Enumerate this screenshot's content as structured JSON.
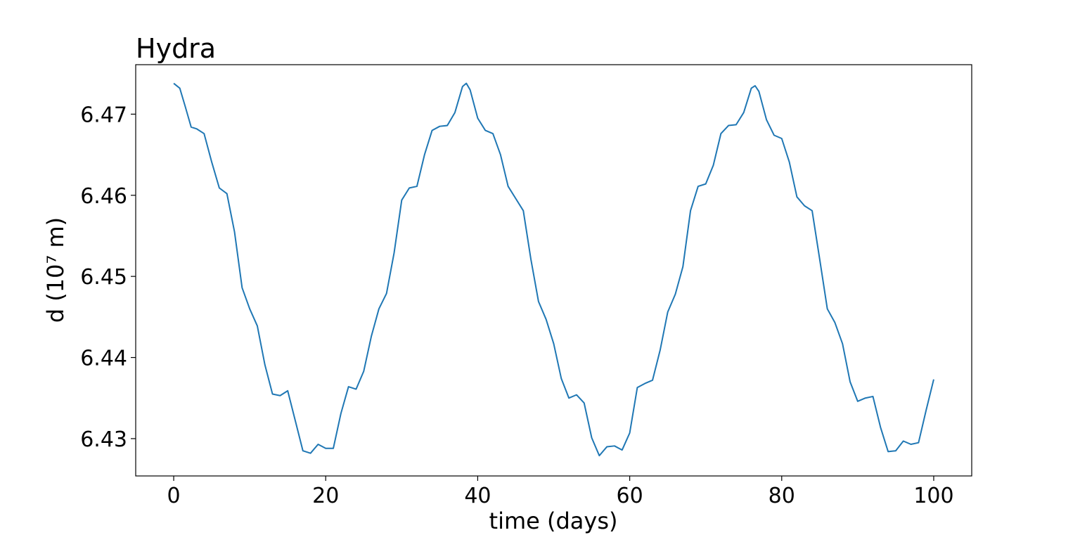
{
  "chart_data": {
    "type": "line",
    "title": "Hydra",
    "xlabel": "time (days)",
    "ylabel": "d (10⁷ m)",
    "x": [
      0,
      0.8,
      1.5,
      2.3,
      3,
      4,
      5,
      6,
      7,
      8,
      9,
      10,
      11,
      12,
      13,
      14,
      15,
      16,
      17,
      18,
      19,
      20,
      21,
      22,
      23,
      24,
      25,
      26,
      27,
      28,
      29,
      30,
      31,
      32,
      33,
      34,
      35,
      36,
      37,
      38,
      38.5,
      39,
      40,
      41,
      42,
      43,
      44,
      45,
      46,
      47,
      48,
      49,
      50,
      51,
      52,
      53,
      54,
      55,
      56,
      57,
      58,
      59,
      60,
      61,
      62,
      63,
      64,
      65,
      66,
      67,
      68,
      69,
      70,
      71,
      72,
      73,
      74,
      75,
      76,
      76.5,
      77,
      78,
      79,
      80,
      81,
      82,
      83,
      84,
      85,
      86,
      87,
      88,
      89,
      90,
      91,
      92,
      93,
      94,
      95,
      96,
      97,
      98,
      99,
      100
    ],
    "series": [
      {
        "name": "d",
        "color": "#1f77b4",
        "values": [
          6.4738,
          6.4732,
          6.471,
          6.4684,
          6.4682,
          6.4676,
          6.4641,
          6.4609,
          6.4602,
          6.4555,
          6.4486,
          6.446,
          6.4439,
          6.4391,
          6.4355,
          6.4353,
          6.4359,
          6.4322,
          6.4285,
          6.4282,
          6.4293,
          6.4288,
          6.4288,
          6.4331,
          6.4364,
          6.4361,
          6.4383,
          6.4426,
          6.446,
          6.4479,
          6.4529,
          6.4594,
          6.4609,
          6.4611,
          6.465,
          6.468,
          6.4685,
          6.4686,
          6.4702,
          6.4734,
          6.4738,
          6.473,
          6.4695,
          6.468,
          6.4676,
          6.465,
          6.4611,
          6.4596,
          6.4581,
          6.4521,
          6.4469,
          6.4447,
          6.4417,
          6.4374,
          6.435,
          6.4354,
          6.4344,
          6.4301,
          6.4279,
          6.429,
          6.4291,
          6.4286,
          6.4307,
          6.4363,
          6.4368,
          6.4372,
          6.4409,
          6.4456,
          6.4478,
          6.4512,
          6.4581,
          6.4611,
          6.4614,
          6.4637,
          6.4676,
          6.4686,
          6.4687,
          6.4702,
          6.4732,
          6.4735,
          6.4728,
          6.4693,
          6.4674,
          6.467,
          6.4641,
          6.4598,
          6.4587,
          6.4581,
          6.4521,
          6.446,
          6.4443,
          6.4417,
          6.437,
          6.4346,
          6.435,
          6.4352,
          6.4314,
          6.4284,
          6.4285,
          6.4297,
          6.4293,
          6.4295,
          6.4335,
          6.4373
        ]
      }
    ],
    "xlim": [
      -5,
      105
    ],
    "xticks": [
      0,
      20,
      40,
      60,
      80,
      100
    ],
    "ylim": [
      6.4254,
      6.4761
    ],
    "yticks": [
      6.43,
      6.44,
      6.45,
      6.46,
      6.47
    ]
  }
}
